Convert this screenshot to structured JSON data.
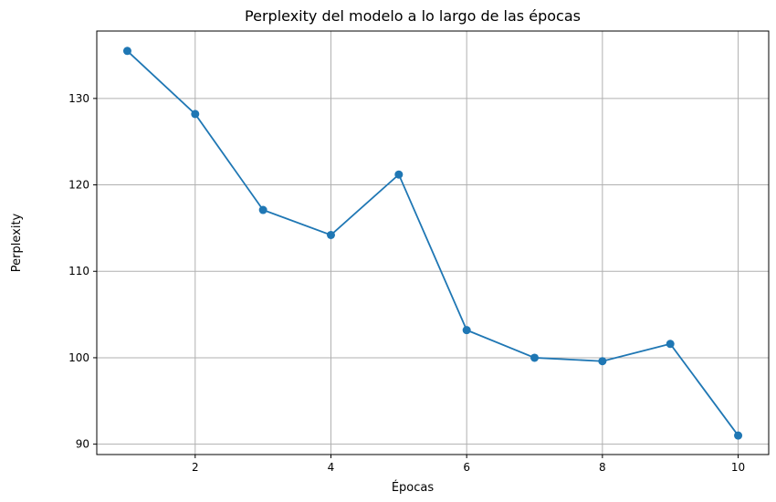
{
  "chart_data": {
    "type": "line",
    "title": "Perplexity del modelo a lo largo de las épocas",
    "xlabel": "Épocas",
    "ylabel": "Perplexity",
    "x": [
      1,
      2,
      3,
      4,
      5,
      6,
      7,
      8,
      9,
      10
    ],
    "series": [
      {
        "values": [
          135.5,
          128.2,
          117.1,
          114.2,
          121.2,
          103.2,
          100.0,
          99.6,
          101.6,
          91.0
        ],
        "color": "#1f77b4",
        "marker": "circle"
      }
    ],
    "xlim": [
      0.55,
      10.45
    ],
    "ylim": [
      88.8,
      137.8
    ],
    "xticks": [
      2,
      4,
      6,
      8,
      10
    ],
    "yticks": [
      90,
      100,
      110,
      120,
      130
    ],
    "grid": true,
    "legend": "none"
  }
}
